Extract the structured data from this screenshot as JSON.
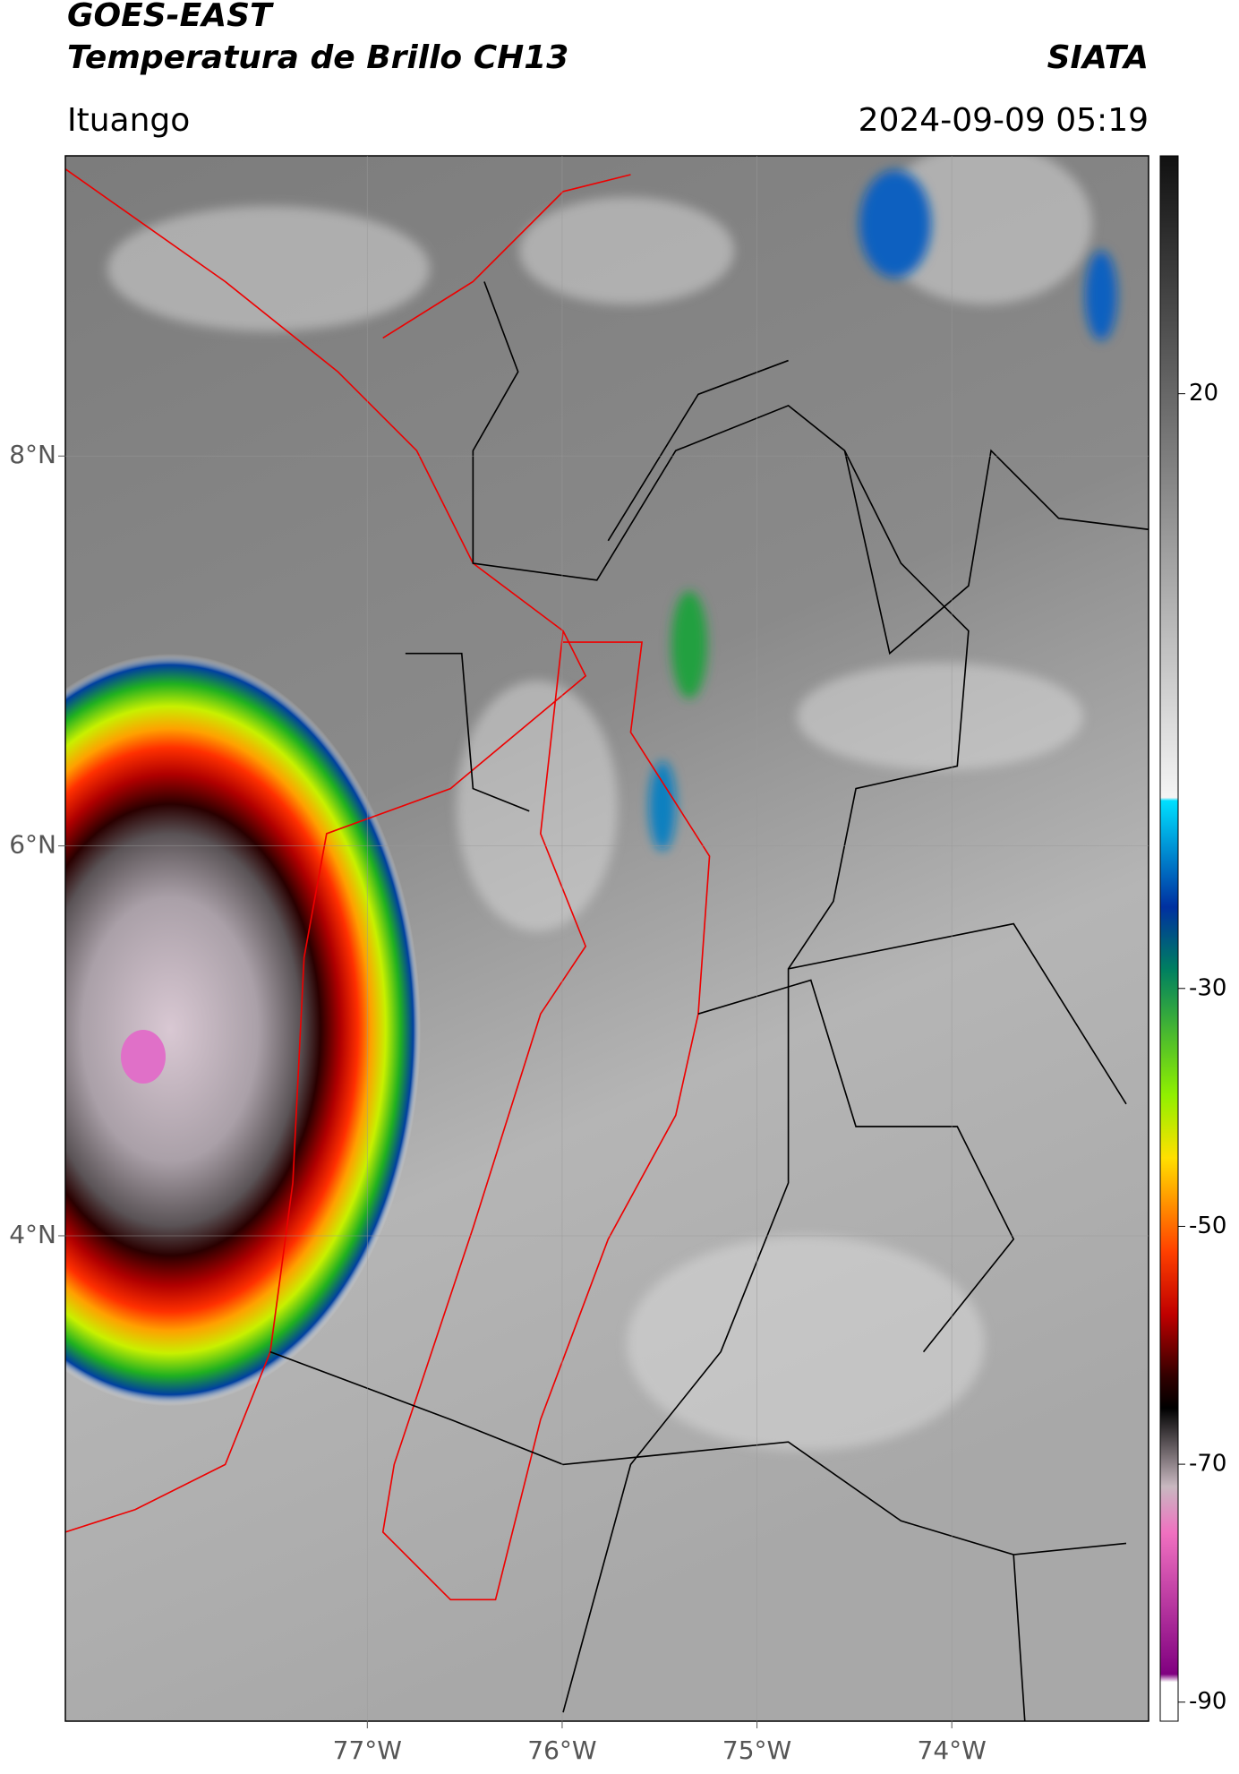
{
  "header": {
    "title": "GOES-EAST",
    "subtitle": "Temperatura de Brillo CH13",
    "brand": "SIATA",
    "location": "Ituango",
    "datetime": "2024-09-09 05:19"
  },
  "map": {
    "latlim": [
      1.51,
      9.54
    ],
    "lonlim": [
      -78.55,
      -72.99
    ],
    "lat_ticks": [
      {
        "value": 8,
        "label": "8°N"
      },
      {
        "value": 6,
        "label": "6°N"
      },
      {
        "value": 4,
        "label": "4°N"
      }
    ],
    "lon_ticks": [
      {
        "value": -77,
        "label": "77°W"
      },
      {
        "value": -76,
        "label": "76°W"
      },
      {
        "value": -75,
        "label": "75°W"
      },
      {
        "value": -74,
        "label": "74°W"
      }
    ]
  },
  "colorbar": {
    "lim": [
      -91.6,
      40
    ],
    "ticks": [
      20,
      -30,
      -50,
      -70,
      -90
    ]
  }
}
